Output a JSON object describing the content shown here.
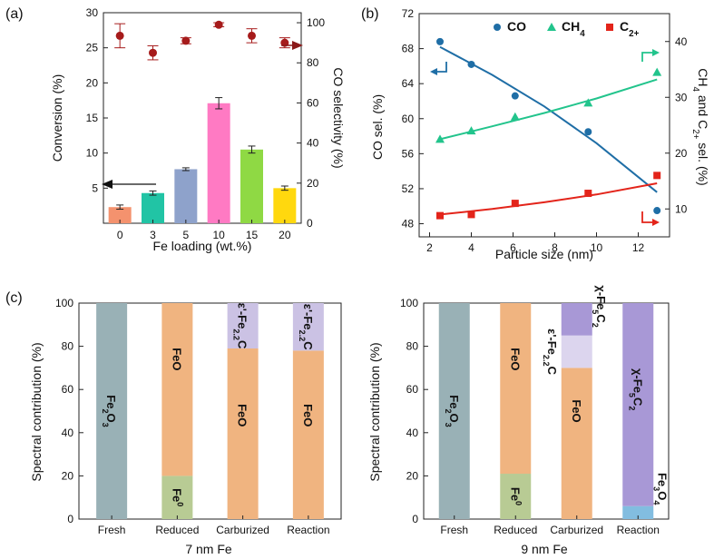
{
  "panel_labels": {
    "a": "(a)",
    "b": "(b)",
    "c": "(c)"
  },
  "chart_data": [
    {
      "id": "a",
      "type": "bar",
      "xlabel": "Fe loading (wt.%)",
      "ylabel": "Conversion (%)",
      "y2label": "CO selectivity (%)",
      "ylim": [
        0,
        30
      ],
      "yticks": [
        0,
        5,
        10,
        15,
        20,
        25,
        30
      ],
      "ytick_labels": [
        "",
        "5",
        "10",
        "15",
        "20",
        "25",
        "30"
      ],
      "y2lim": [
        0,
        105
      ],
      "y2ticks": [
        0,
        20,
        40,
        60,
        80,
        100
      ],
      "categories": [
        "0",
        "3",
        "5",
        "10",
        "15",
        "20"
      ],
      "series": [
        {
          "name": "Conversion",
          "values": [
            2.3,
            4.3,
            7.7,
            17.1,
            10.5,
            5.0
          ],
          "errors": [
            0.3,
            0.3,
            0.2,
            0.8,
            0.5,
            0.3
          ],
          "colors": [
            "#f4926e",
            "#21c4a5",
            "#8ea2cb",
            "#ff7ac3",
            "#8fd944",
            "#ffd80e"
          ]
        },
        {
          "name": "CO selectivity",
          "axis": "right",
          "values": [
            93.5,
            85.0,
            91.0,
            99.0,
            93.5,
            90.0
          ],
          "errors": [
            6.0,
            3.5,
            1.5,
            1.0,
            3.5,
            2.5
          ],
          "color": "#a61b1b"
        }
      ],
      "annotations": [
        "arrow-left-to-conversion-axis",
        "arrow-right-to-selectivity-axis"
      ]
    },
    {
      "id": "b",
      "type": "scatter",
      "xlabel": "Particle size (nm)",
      "ylabel": "CO sel. (%)",
      "y2label_parts": [
        "CH",
        "4",
        " and C",
        "2+",
        " sel. (%)"
      ],
      "xlim": [
        1.5,
        13.5
      ],
      "xticks": [
        2,
        4,
        6,
        8,
        10,
        12,
        14
      ],
      "ylim": [
        46.5,
        72
      ],
      "yticks": [
        48,
        52,
        56,
        60,
        64,
        68,
        72
      ],
      "y2lim": [
        5,
        45
      ],
      "y2ticks": [
        10,
        20,
        30,
        40
      ],
      "series": [
        {
          "name": "CO",
          "name_parts": [
            "CO"
          ],
          "axis": "left",
          "marker": "circle",
          "color": "#1f6ea6",
          "x": [
            2.5,
            4.0,
            6.1,
            9.6,
            12.9
          ],
          "y": [
            68.8,
            66.2,
            62.6,
            58.5,
            49.5
          ],
          "fit": [
            [
              2.5,
              68.2
            ],
            [
              5.0,
              65.0
            ],
            [
              7.5,
              61.4
            ],
            [
              10.0,
              57.2
            ],
            [
              12.9,
              51.6
            ]
          ]
        },
        {
          "name": "CH4",
          "name_parts": [
            "CH",
            "4"
          ],
          "axis": "right",
          "marker": "triangle",
          "color": "#22c48c",
          "x": [
            2.5,
            4.0,
            6.1,
            9.6,
            12.9
          ],
          "y": [
            22.5,
            24.0,
            26.5,
            29.0,
            34.5
          ],
          "fit": [
            [
              2.5,
              22.5
            ],
            [
              5.0,
              24.8
            ],
            [
              7.5,
              27.2
            ],
            [
              10.0,
              29.8
            ],
            [
              12.9,
              33.2
            ]
          ]
        },
        {
          "name": "C2+",
          "name_parts": [
            "C",
            "2+"
          ],
          "axis": "right",
          "marker": "square",
          "color": "#e3241a",
          "x": [
            2.5,
            4.0,
            6.1,
            9.6,
            12.9
          ],
          "y": [
            8.8,
            9.0,
            11.0,
            12.8,
            16.0
          ],
          "fit": [
            [
              2.5,
              9.0
            ],
            [
              5.0,
              10.0
            ],
            [
              7.5,
              11.2
            ],
            [
              10.0,
              12.6
            ],
            [
              12.9,
              14.6
            ]
          ]
        }
      ],
      "annotations": [
        "arrow-to-left-axis-CO",
        "arrow-to-right-axis-CH4",
        "arrow-to-right-axis-C2"
      ]
    },
    {
      "id": "c1",
      "type": "bar",
      "stacked": true,
      "title": "7 nm Fe",
      "ylabel": "Spectral contribution (%)",
      "ylim": [
        0,
        100
      ],
      "yticks": [
        0,
        20,
        40,
        60,
        80,
        100
      ],
      "categories": [
        "Fresh",
        "Reduced",
        "Carburized",
        "Reaction"
      ],
      "stacks": [
        [
          {
            "phase": "Fe2O3",
            "value": 100,
            "color": "#99b1b6",
            "label_parts": [
              "Fe",
              "2",
              "O",
              "3"
            ],
            "sub": [
              1,
              3
            ]
          }
        ],
        [
          {
            "phase": "Fe0",
            "value": 20,
            "color": "#b8cb94",
            "label_parts": [
              "Fe",
              "0"
            ],
            "sup": [
              1
            ]
          },
          {
            "phase": "FeO",
            "value": 80,
            "color": "#f0b480",
            "label_parts": [
              "FeO"
            ],
            "label_y": 74
          }
        ],
        [
          {
            "phase": "FeO",
            "value": 79,
            "color": "#f0b480",
            "label_parts": [
              "FeO"
            ],
            "label_y": 48
          },
          {
            "phase": "ε'-Fe2.2C",
            "value": 21,
            "color": "#cbc2e4",
            "label_parts": [
              "ε'-Fe",
              "2.2",
              "C"
            ],
            "sub": [
              1
            ]
          }
        ],
        [
          {
            "phase": "FeO",
            "value": 78,
            "color": "#f0b480",
            "label_parts": [
              "FeO"
            ],
            "label_y": 48
          },
          {
            "phase": "ε'-Fe2.2C",
            "value": 22,
            "color": "#cbc2e4",
            "label_parts": [
              "ε'-Fe",
              "2.2",
              "C"
            ],
            "sub": [
              1
            ]
          }
        ]
      ]
    },
    {
      "id": "c2",
      "type": "bar",
      "stacked": true,
      "title": "9 nm Fe",
      "ylabel": "Spectral contribution (%)",
      "ylim": [
        0,
        100
      ],
      "yticks": [
        0,
        20,
        40,
        60,
        80,
        100
      ],
      "categories": [
        "Fresh",
        "Reduced",
        "Carburized",
        "Reaction"
      ],
      "stacks": [
        [
          {
            "phase": "Fe2O3",
            "value": 100,
            "color": "#99b1b6",
            "label_parts": [
              "Fe",
              "2",
              "O",
              "3"
            ],
            "sub": [
              1,
              3
            ]
          }
        ],
        [
          {
            "phase": "Fe0",
            "value": 21,
            "color": "#b8cb94",
            "label_parts": [
              "Fe",
              "0"
            ],
            "sup": [
              1
            ]
          },
          {
            "phase": "FeO",
            "value": 79,
            "color": "#f0b480",
            "label_parts": [
              "FeO"
            ],
            "label_y": 74
          }
        ],
        [
          {
            "phase": "FeO",
            "value": 70,
            "color": "#f0b480",
            "label_parts": [
              "FeO"
            ],
            "label_y": 50
          },
          {
            "phase": "ε'-Fe2.2C",
            "value": 15,
            "color": "#dcd5ee",
            "label_parts": [
              "ε'-Fe",
              "2.2",
              "C"
            ],
            "sub": [
              1
            ],
            "outside": "left"
          },
          {
            "phase": "χ-Fe5C2",
            "value": 15,
            "color": "#a898d6",
            "label_parts": [
              "χ-Fe",
              "5",
              "C",
              "2"
            ],
            "sub": [
              1,
              3
            ],
            "outside": "right"
          }
        ],
        [
          {
            "phase": "Fe3O4",
            "value": 6,
            "color": "#82bde0",
            "label_parts": [
              "Fe",
              "3",
              "O",
              "4"
            ],
            "sub": [
              1,
              3
            ],
            "outside": "right"
          },
          {
            "phase": "χ-Fe5C2",
            "value": 94,
            "color": "#a898d6",
            "label_parts": [
              "χ-Fe",
              "5",
              "C",
              "2"
            ],
            "sub": [
              1,
              3
            ],
            "label_y": 60
          }
        ]
      ]
    }
  ]
}
